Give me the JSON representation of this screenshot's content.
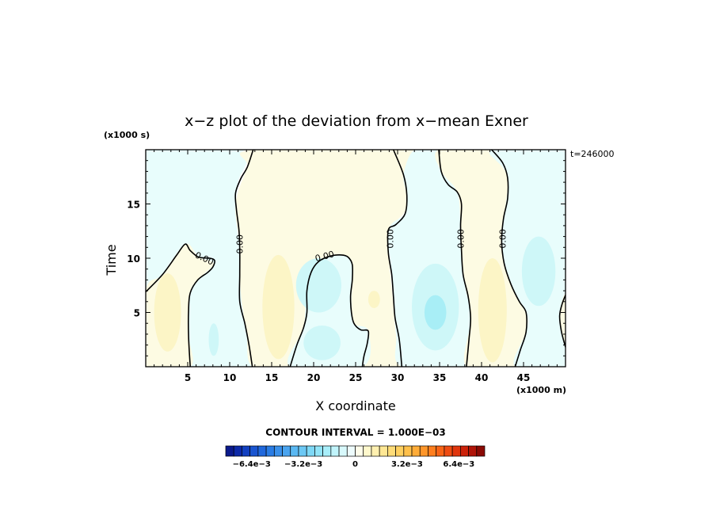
{
  "chart_data": {
    "type": "contour",
    "title": "x−z plot of the deviation from x−mean Exner",
    "xlabel": "X coordinate",
    "ylabel": "Time",
    "x_unit": "(x1000 m)",
    "y_unit": "(x1000 s)",
    "time_stamp": "t=246000",
    "xlim": [
      0,
      50
    ],
    "ylim": [
      0,
      20
    ],
    "x_ticks": [
      5,
      10,
      15,
      20,
      25,
      30,
      35,
      40,
      45
    ],
    "y_ticks": [
      5,
      10,
      15
    ],
    "x_tick_labels": [
      "5",
      "10",
      "15",
      "20",
      "25",
      "30",
      "35",
      "40",
      "45"
    ],
    "y_tick_labels": [
      "5",
      "10",
      "15"
    ],
    "contour_label": "0.00",
    "contour_interval_text": "CONTOUR INTERVAL = 1.000E−03",
    "zero_contours": [
      [
        [
          0,
          6.9
        ],
        [
          2,
          8.5
        ],
        [
          3.7,
          10.3
        ],
        [
          4.7,
          11.3
        ],
        [
          5.3,
          10.7
        ],
        [
          6.3,
          10.1
        ],
        [
          7.6,
          10
        ],
        [
          8.2,
          9.8
        ],
        [
          8,
          9.2
        ],
        [
          7.4,
          8.7
        ],
        [
          6.2,
          8
        ],
        [
          5.3,
          6.8
        ],
        [
          5.1,
          5.2
        ],
        [
          5.1,
          2.8
        ],
        [
          5.3,
          0
        ]
      ],
      [
        [
          12.7,
          0
        ],
        [
          12.3,
          2
        ],
        [
          11.8,
          4
        ],
        [
          11.2,
          6
        ],
        [
          11.2,
          8.5
        ],
        [
          11.2,
          10.8
        ],
        [
          11.1,
          12.6
        ],
        [
          10.8,
          14.5
        ],
        [
          10.7,
          16
        ],
        [
          11.3,
          17.3
        ],
        [
          12.1,
          18.4
        ],
        [
          12.8,
          20
        ]
      ],
      [
        [
          17.2,
          0
        ],
        [
          18,
          2
        ],
        [
          18.8,
          3.6
        ],
        [
          19.2,
          5
        ],
        [
          19.2,
          7
        ],
        [
          19.7,
          8.7
        ],
        [
          20.6,
          9.7
        ],
        [
          22,
          10.2
        ],
        [
          23.3,
          10.3
        ],
        [
          24.1,
          10.1
        ],
        [
          24.6,
          9.4
        ],
        [
          24.6,
          8
        ],
        [
          24.4,
          6.5
        ],
        [
          24.5,
          5
        ],
        [
          24.8,
          4
        ],
        [
          25.6,
          3.4
        ],
        [
          26.5,
          3.3
        ],
        [
          26.4,
          2.2
        ],
        [
          26,
          1
        ],
        [
          25.8,
          0
        ]
      ],
      [
        [
          29.5,
          20
        ],
        [
          30.7,
          17.7
        ],
        [
          31.1,
          15.8
        ],
        [
          30.9,
          14.1
        ],
        [
          29.8,
          13.1
        ],
        [
          28.9,
          12.6
        ],
        [
          28.9,
          10.5
        ],
        [
          29.3,
          8.5
        ],
        [
          29.5,
          6.5
        ],
        [
          29.7,
          4.5
        ],
        [
          30.2,
          2.5
        ],
        [
          30.5,
          0
        ]
      ],
      [
        [
          34.9,
          20
        ],
        [
          35.2,
          18
        ],
        [
          36,
          16.8
        ],
        [
          37.1,
          16.1
        ],
        [
          37.6,
          15
        ],
        [
          37.5,
          13
        ],
        [
          37.6,
          10.8
        ],
        [
          37.8,
          8.5
        ],
        [
          38.4,
          6.5
        ],
        [
          38.7,
          4.5
        ],
        [
          38.5,
          2.5
        ],
        [
          38.2,
          0
        ]
      ],
      [
        [
          41.2,
          20
        ],
        [
          42.5,
          18.8
        ],
        [
          43.1,
          17.4
        ],
        [
          43.1,
          15.5
        ],
        [
          42.6,
          13.6
        ],
        [
          42.4,
          11.5
        ],
        [
          42.7,
          9.5
        ],
        [
          43.5,
          7.6
        ],
        [
          44.5,
          6
        ],
        [
          45.3,
          5
        ],
        [
          45.3,
          3.2
        ],
        [
          44.6,
          1.5
        ],
        [
          44,
          0
        ]
      ],
      [
        [
          50,
          6.6
        ],
        [
          49.6,
          5.8
        ],
        [
          49.3,
          4.7
        ],
        [
          49.5,
          3.3
        ],
        [
          50,
          1.8
        ]
      ]
    ],
    "contour_label_positions": [
      {
        "text": "0.00",
        "x": 7.0,
        "y": 10.0,
        "angle": 25
      },
      {
        "text": "0.00",
        "x": 11.2,
        "y": 11.3,
        "angle": -90
      },
      {
        "text": "0.00",
        "x": 21.3,
        "y": 10.2,
        "angle": -15
      },
      {
        "text": "0.00",
        "x": 29.1,
        "y": 11.8,
        "angle": -90
      },
      {
        "text": "0.00",
        "x": 37.5,
        "y": 11.8,
        "angle": -90
      },
      {
        "text": "0.00",
        "x": 42.5,
        "y": 11.8,
        "angle": -90
      }
    ],
    "filled_regions": [
      {
        "sign": "negative",
        "level": -0.001,
        "points": [
          [
            0,
            20
          ],
          [
            11.4,
            20
          ],
          [
            11,
            17
          ],
          [
            10.7,
            15
          ],
          [
            11,
            13
          ],
          [
            11.2,
            11
          ],
          [
            11.2,
            8
          ],
          [
            11.5,
            6
          ],
          [
            12,
            3
          ],
          [
            12.7,
            0
          ],
          [
            5.3,
            0
          ],
          [
            5.1,
            4
          ],
          [
            5.3,
            7
          ],
          [
            6.5,
            8.2
          ],
          [
            8.1,
            9.5
          ],
          [
            6.5,
            10
          ],
          [
            4.8,
            11.3
          ],
          [
            3,
            9.7
          ],
          [
            0,
            7
          ]
        ]
      },
      {
        "sign": "positive",
        "level": 0.001,
        "points": [
          [
            0,
            7
          ],
          [
            2,
            8.5
          ],
          [
            4.7,
            11.3
          ],
          [
            6.3,
            10.1
          ],
          [
            8.1,
            9.5
          ],
          [
            6.2,
            8
          ],
          [
            5.3,
            6.8
          ],
          [
            5.1,
            3
          ],
          [
            5.3,
            0
          ],
          [
            0,
            0
          ]
        ]
      },
      {
        "sign": "positive",
        "level": 0.001,
        "points": [
          [
            12.8,
            20
          ],
          [
            32,
            20
          ],
          [
            31,
            17
          ],
          [
            31,
            14.5
          ],
          [
            29,
            12.6
          ],
          [
            29,
            10
          ],
          [
            29.4,
            6.5
          ],
          [
            29.8,
            3
          ],
          [
            30.5,
            0
          ],
          [
            25.8,
            0
          ],
          [
            26.5,
            3.3
          ],
          [
            24.8,
            4
          ],
          [
            24.5,
            6
          ],
          [
            24.6,
            9.4
          ],
          [
            23.3,
            10.3
          ],
          [
            20.6,
            9.7
          ],
          [
            19.2,
            7
          ],
          [
            18.8,
            3.6
          ],
          [
            17.2,
            0
          ],
          [
            12.7,
            0
          ],
          [
            12,
            3
          ],
          [
            11.3,
            7
          ],
          [
            11.2,
            11
          ],
          [
            10.7,
            15
          ],
          [
            12.1,
            18.4
          ]
        ]
      },
      {
        "sign": "negative",
        "level": -0.001,
        "points": [
          [
            17.2,
            0
          ],
          [
            18.8,
            3.6
          ],
          [
            19.2,
            7
          ],
          [
            20.6,
            9.7
          ],
          [
            23.3,
            10.3
          ],
          [
            24.6,
            9.4
          ],
          [
            24.5,
            6
          ],
          [
            24.8,
            4
          ],
          [
            26.5,
            3.3
          ],
          [
            25.8,
            0
          ]
        ]
      },
      {
        "sign": "negative",
        "level": -0.001,
        "points": [
          [
            32,
            20
          ],
          [
            34.9,
            20
          ],
          [
            35.2,
            18
          ],
          [
            37.1,
            16.1
          ],
          [
            37.5,
            13
          ],
          [
            37.8,
            8.5
          ],
          [
            38.7,
            4.5
          ],
          [
            38.2,
            0
          ],
          [
            30.5,
            0
          ],
          [
            29.8,
            3
          ],
          [
            29.3,
            8.5
          ],
          [
            28.9,
            12.6
          ],
          [
            30.9,
            14.1
          ],
          [
            31.1,
            15.8
          ],
          [
            30.7,
            17.7
          ]
        ]
      },
      {
        "sign": "positive",
        "level": 0.001,
        "points": [
          [
            34.9,
            20
          ],
          [
            41.2,
            20
          ],
          [
            43.1,
            17.4
          ],
          [
            42.4,
            11.5
          ],
          [
            43.5,
            7.6
          ],
          [
            45.3,
            5
          ],
          [
            45.3,
            3.2
          ],
          [
            44,
            0
          ],
          [
            38.2,
            0
          ],
          [
            38.7,
            4.5
          ],
          [
            37.8,
            8.5
          ],
          [
            37.5,
            13
          ],
          [
            37.1,
            16.1
          ],
          [
            35.2,
            18
          ]
        ]
      },
      {
        "sign": "negative",
        "level": -0.001,
        "points": [
          [
            41.2,
            20
          ],
          [
            50,
            20
          ],
          [
            50,
            6.6
          ],
          [
            49.3,
            4.7
          ],
          [
            50,
            1.8
          ],
          [
            50,
            0
          ],
          [
            44,
            0
          ],
          [
            45.3,
            3.2
          ],
          [
            45.3,
            5
          ],
          [
            43.5,
            7.6
          ],
          [
            42.4,
            11.5
          ],
          [
            43.1,
            17.4
          ]
        ]
      },
      {
        "sign": "positive",
        "level": 0.001,
        "points": [
          [
            50,
            6.6
          ],
          [
            49.3,
            4.7
          ],
          [
            50,
            1.8
          ]
        ]
      }
    ],
    "blobs": [
      {
        "sign": "positive",
        "level": 0.002,
        "cx": 2.6,
        "cy": 5.0,
        "rx": 1.6,
        "ry": 3.6
      },
      {
        "sign": "positive",
        "level": 0.002,
        "cx": 15.8,
        "cy": 5.5,
        "rx": 1.9,
        "ry": 4.8
      },
      {
        "sign": "positive",
        "level": 0.002,
        "cx": 27.2,
        "cy": 6.2,
        "rx": 0.7,
        "ry": 0.8
      },
      {
        "sign": "positive",
        "level": 0.002,
        "cx": 41.3,
        "cy": 5.2,
        "rx": 1.7,
        "ry": 4.8
      },
      {
        "sign": "negative",
        "level": -0.002,
        "cx": 8.1,
        "cy": 2.5,
        "rx": 0.6,
        "ry": 1.5
      },
      {
        "sign": "negative",
        "level": -0.002,
        "cx": 20.6,
        "cy": 7.5,
        "rx": 2.7,
        "ry": 2.5
      },
      {
        "sign": "negative",
        "level": -0.002,
        "cx": 21.0,
        "cy": 2.2,
        "rx": 2.2,
        "ry": 1.6
      },
      {
        "sign": "negative",
        "level": -0.002,
        "cx": 34.5,
        "cy": 5.5,
        "rx": 2.8,
        "ry": 4.0
      },
      {
        "sign": "negative",
        "level": -0.003,
        "cx": 34.5,
        "cy": 5.0,
        "rx": 1.3,
        "ry": 1.6
      },
      {
        "sign": "negative",
        "level": -0.002,
        "cx": 46.8,
        "cy": 8.8,
        "rx": 2.0,
        "ry": 3.2
      }
    ],
    "colorbar": {
      "min": -0.008,
      "max": 0.008,
      "interval": 0.0005,
      "tick_labels": [
        "−6.4e−3",
        "−3.2e−3",
        "0",
        "3.2e−3",
        "6.4e−3"
      ],
      "tick_values": [
        -0.0064,
        -0.0032,
        0,
        0.0032,
        0.0064
      ],
      "colors": [
        "#0b1a8c",
        "#0d2aa8",
        "#1240c0",
        "#1a55d0",
        "#2068dc",
        "#2a7ce4",
        "#3a90ea",
        "#4aa4ef",
        "#5ab8f2",
        "#6cc8f4",
        "#7ed8f6",
        "#92e4f8",
        "#a8eefa",
        "#c0f4fb",
        "#d8f9fc",
        "#eefcfd",
        "#fffdea",
        "#fff8cc",
        "#fff0b0",
        "#ffe794",
        "#ffdc78",
        "#ffd060",
        "#ffc04a",
        "#ffac38",
        "#ff962a",
        "#ff7e1e",
        "#f86416",
        "#ee4c12",
        "#e0360e",
        "#cc220a",
        "#b01408",
        "#8a0a04"
      ]
    },
    "region_colors": {
      "positive": "#fdfbe3",
      "negative": "#e8fdfc"
    },
    "blob_colors": {
      "0.002": "#fcf5c6",
      "-0.002": "#cef7f8",
      "-0.003": "#a8eef6"
    }
  }
}
